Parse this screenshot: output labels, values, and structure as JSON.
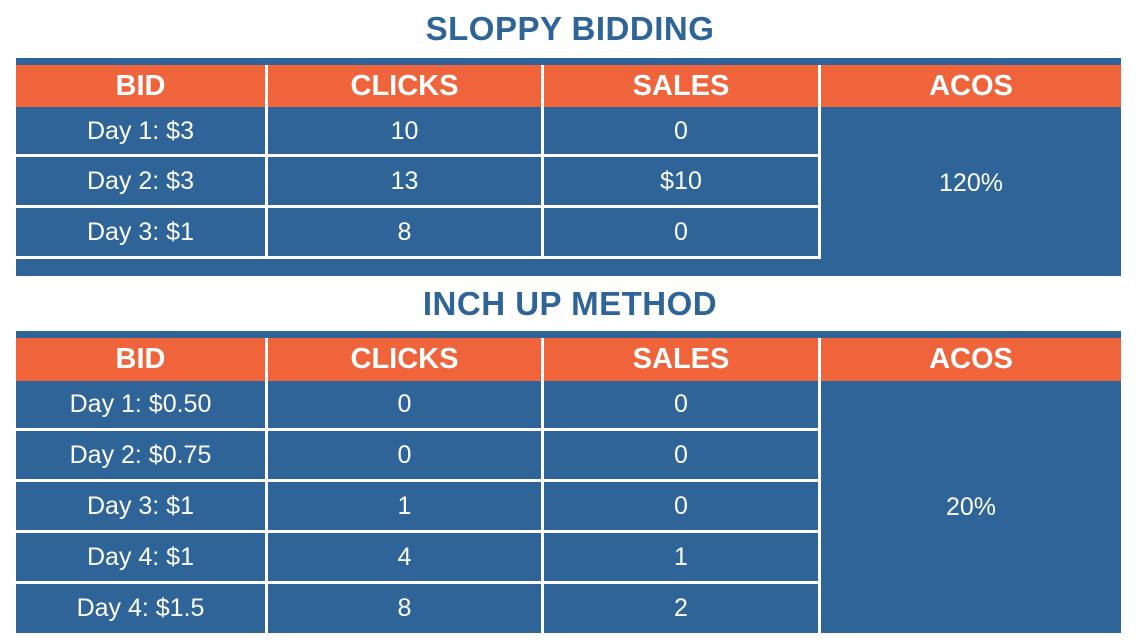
{
  "colors": {
    "header_bg": "#f0643c",
    "body_bg": "#2e6497",
    "title": "#2e6497",
    "text": "#ffffff"
  },
  "chart_data": [
    {
      "type": "table",
      "title": "SLOPPY BIDDING",
      "columns": [
        "BID",
        "CLICKS",
        "SALES",
        "ACOS"
      ],
      "rows": [
        {
          "bid": "Day 1: $3",
          "clicks": "10",
          "sales": "0"
        },
        {
          "bid": "Day 2: $3",
          "clicks": "13",
          "sales": "$10"
        },
        {
          "bid": "Day 3: $1",
          "clicks": "8",
          "sales": "0"
        }
      ],
      "acos": "120%"
    },
    {
      "type": "table",
      "title": "INCH UP METHOD",
      "columns": [
        "BID",
        "CLICKS",
        "SALES",
        "ACOS"
      ],
      "rows": [
        {
          "bid": "Day 1: $0.50",
          "clicks": "0",
          "sales": "0"
        },
        {
          "bid": "Day 2: $0.75",
          "clicks": "0",
          "sales": "0"
        },
        {
          "bid": "Day 3: $1",
          "clicks": "1",
          "sales": "0"
        },
        {
          "bid": "Day 4: $1",
          "clicks": "4",
          "sales": "1"
        },
        {
          "bid": "Day 4: $1.5",
          "clicks": "8",
          "sales": "2"
        }
      ],
      "acos": "20%"
    }
  ]
}
